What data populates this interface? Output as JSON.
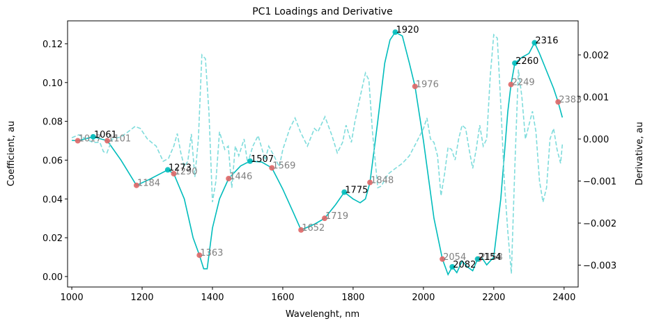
{
  "chart_data": {
    "type": "line",
    "title": "PC1 Loadings and Derivative",
    "xlabel": "Wavelenght, nm",
    "ylabel": "Coefficient, au",
    "y2label": "Derivative, au",
    "xlim": [
      988,
      2440
    ],
    "ylim": [
      -0.0054,
      0.1318
    ],
    "y2lim": [
      -0.00352,
      0.00281
    ],
    "xticks": [
      1000,
      1200,
      1400,
      1600,
      1800,
      2000,
      2200,
      2400
    ],
    "yticks": [
      {
        "value": 0,
        "label": "0.00"
      },
      {
        "value": 0.02,
        "label": "0.02"
      },
      {
        "value": 0.04,
        "label": "0.04"
      },
      {
        "value": 0.06,
        "label": "0.06"
      },
      {
        "value": 0.08,
        "label": "0.08"
      },
      {
        "value": 0.1,
        "label": "0.10"
      },
      {
        "value": 0.12,
        "label": "0.12"
      }
    ],
    "y2ticks": [
      {
        "value": -0.003,
        "label": "−0.003"
      },
      {
        "value": -0.002,
        "label": "−0.002"
      },
      {
        "value": -0.001,
        "label": "−0.001"
      },
      {
        "value": 0,
        "label": "0.000"
      },
      {
        "value": 0.001,
        "label": "0.001"
      },
      {
        "value": 0.002,
        "label": "0.002"
      }
    ],
    "series": [
      {
        "color": "#00bcbc",
        "dash": false,
        "axis": "y",
        "x": [
          1000,
          1017,
          1061,
          1101,
          1140,
          1184,
          1220,
          1273,
          1290,
          1320,
          1345,
          1363,
          1375,
          1385,
          1400,
          1420,
          1446,
          1480,
          1507,
          1540,
          1569,
          1600,
          1630,
          1652,
          1690,
          1719,
          1750,
          1775,
          1800,
          1820,
          1835,
          1848,
          1870,
          1890,
          1905,
          1920,
          1940,
          1960,
          1976,
          2000,
          2030,
          2054,
          2070,
          2082,
          2095,
          2110,
          2125,
          2140,
          2154,
          2165,
          2180,
          2200,
          2220,
          2240,
          2249,
          2260,
          2280,
          2300,
          2316,
          2330,
          2350,
          2370,
          2383,
          2395
        ],
        "values": [
          0.0702,
          0.07,
          0.072,
          0.07,
          0.06,
          0.047,
          0.05,
          0.055,
          0.053,
          0.04,
          0.02,
          0.011,
          0.004,
          0.004,
          0.025,
          0.04,
          0.0505,
          0.057,
          0.0595,
          0.059,
          0.056,
          0.045,
          0.033,
          0.024,
          0.027,
          0.03,
          0.037,
          0.0435,
          0.04,
          0.038,
          0.04,
          0.0485,
          0.08,
          0.11,
          0.122,
          0.126,
          0.124,
          0.11,
          0.098,
          0.07,
          0.03,
          0.009,
          0.001,
          0.005,
          0.002,
          0.008,
          0.005,
          0.003,
          0.009,
          0.01,
          0.006,
          0.01,
          0.04,
          0.085,
          0.099,
          0.11,
          0.113,
          0.115,
          0.1205,
          0.115,
          0.106,
          0.097,
          0.09,
          0.082
        ]
      },
      {
        "color": "#7fdcdc",
        "dash": true,
        "axis": "y2",
        "x": [
          1000,
          1020,
          1040,
          1060,
          1080,
          1090,
          1100,
          1115,
          1140,
          1160,
          1180,
          1195,
          1215,
          1240,
          1260,
          1275,
          1290,
          1300,
          1310,
          1320,
          1330,
          1340,
          1350,
          1360,
          1370,
          1380,
          1390,
          1400,
          1410,
          1420,
          1435,
          1445,
          1455,
          1465,
          1475,
          1490,
          1500,
          1515,
          1530,
          1550,
          1560,
          1575,
          1590,
          1600,
          1610,
          1620,
          1635,
          1650,
          1670,
          1690,
          1700,
          1720,
          1740,
          1755,
          1770,
          1780,
          1795,
          1805,
          1820,
          1835,
          1845,
          1855,
          1870,
          1880,
          1900,
          1920,
          1940,
          1960,
          1980,
          2000,
          2010,
          2020,
          2030,
          2040,
          2050,
          2060,
          2070,
          2080,
          2090,
          2100,
          2110,
          2120,
          2130,
          2140,
          2150,
          2160,
          2170,
          2180,
          2190,
          2200,
          2210,
          2220,
          2230,
          2240,
          2250,
          2260,
          2270,
          2280,
          2290,
          2300,
          2310,
          2320,
          2330,
          2340,
          2350,
          2360,
          2370,
          2380,
          2390,
          2395
        ],
        "values": [
          3e-05,
          0.0001,
          0,
          -8e-05,
          -8e-05,
          -0.0003,
          -0.00033,
          0,
          5e-05,
          0.00017,
          0.0003,
          0.00025,
          0,
          -0.00017,
          -0.00053,
          -0.00046,
          -0.00017,
          0.00013,
          -0.00033,
          -0.00066,
          -0.00053,
          0.00012,
          -0.0009,
          0,
          0.002,
          0.00191,
          0.00066,
          -0.0015,
          -0.001,
          0.00017,
          -0.00025,
          -0.00017,
          -0.00116,
          -0.00017,
          -0.0004,
          0,
          -0.00058,
          -0.00017,
          8e-05,
          -0.0005,
          -0.00017,
          -0.0004,
          -0.00066,
          -0.00025,
          0,
          0.00025,
          0.0005,
          0.00017,
          -0.00017,
          0.00025,
          0.00017,
          0.00053,
          8e-05,
          -0.00033,
          -8e-05,
          0.00033,
          -8e-05,
          0.0004,
          0.001,
          0.00157,
          0.0014,
          0.00017,
          -0.00116,
          -0.00112,
          -0.00083,
          -0.0007,
          -0.00058,
          -0.0004,
          -8e-05,
          0.00025,
          0.0005,
          0,
          -8e-05,
          -0.0004,
          -0.00135,
          -0.00083,
          -0.0002,
          -0.00025,
          -0.0005,
          0,
          0.00033,
          0.00025,
          -0.00025,
          -0.0007,
          -0.00025,
          0.00033,
          -0.00017,
          0,
          0.0015,
          0.00248,
          0.0024,
          0.00083,
          -0.001,
          -0.0022,
          -0.0032,
          -0.00066,
          0.00165,
          0.001,
          0,
          0.00033,
          0.00066,
          0.00017,
          -0.001,
          -0.0015,
          -0.00116,
          0,
          0.00025,
          -0.00025,
          -0.00058,
          -0.00013
        ]
      }
    ],
    "markers": [
      {
        "color": "#e06666",
        "label_color": "#808080",
        "x": [
          1017,
          1101,
          1184,
          1290,
          1363,
          1446,
          1569,
          1652,
          1719,
          1848,
          1976,
          2054,
          2158,
          2249,
          2383
        ],
        "values": [
          0.07,
          0.07,
          0.047,
          0.053,
          0.011,
          0.0505,
          0.056,
          0.024,
          0.03,
          0.0485,
          0.098,
          0.009,
          0.009,
          0.099,
          0.09
        ]
      },
      {
        "color": "#00bcbc",
        "label_color": "#000000",
        "x": [
          1061,
          1273,
          1507,
          1775,
          1920,
          2082,
          2154,
          2260,
          2316
        ],
        "values": [
          0.072,
          0.055,
          0.0595,
          0.0435,
          0.126,
          0.005,
          0.009,
          0.11,
          0.1205
        ]
      }
    ]
  }
}
